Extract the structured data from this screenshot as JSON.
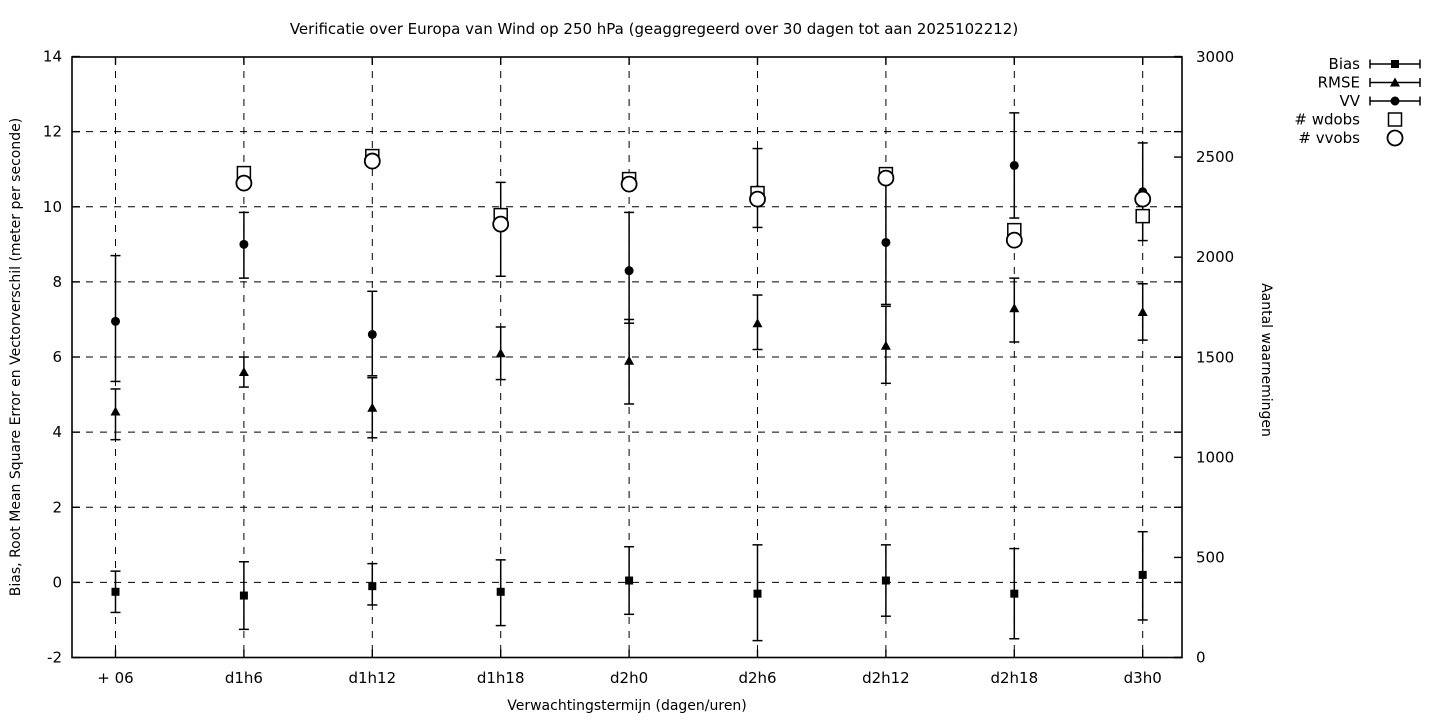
{
  "chart_data": {
    "type": "scatter",
    "title": "Verificatie over Europa van Wind op 250 hPa (geaggregeerd over 30 dagen tot aan 2025102212)",
    "xlabel": "Verwachtingstermijn (dagen/uren)",
    "ylabel_left": "Bias, Root Mean Square Error en Vectorverschil (meter per seconde)",
    "ylabel_right": "Aantal waarnemingen",
    "categories": [
      "+ 06",
      "d1h6",
      "d1h12",
      "d1h18",
      "d2h0",
      "d2h6",
      "d2h12",
      "d2h18",
      "d3h0"
    ],
    "left_axis": {
      "min": -2,
      "max": 14,
      "ticks": [
        14,
        12,
        10,
        8,
        6,
        4,
        2,
        0,
        -2
      ]
    },
    "right_axis": {
      "min": 0,
      "max": 3000,
      "ticks": [
        3000,
        2500,
        2000,
        1500,
        1000,
        500,
        0
      ]
    },
    "grid": true,
    "legend_position": "top-right-outside",
    "colors": {
      "foreground": "#000000",
      "background": "#ffffff"
    },
    "series": [
      {
        "name": "Bias",
        "axis": "left",
        "marker": "filled-square",
        "errorbars": true,
        "values": [
          -0.25,
          -0.35,
          -0.1,
          -0.25,
          0.05,
          -0.3,
          0.05,
          -0.3,
          0.2
        ],
        "err_low": [
          -0.8,
          -1.25,
          -0.6,
          -1.15,
          -0.85,
          -1.55,
          -0.9,
          -1.5,
          -1.0
        ],
        "err_high": [
          0.3,
          0.55,
          0.5,
          0.6,
          0.95,
          1.0,
          1.0,
          0.9,
          1.35
        ]
      },
      {
        "name": "RMSE",
        "axis": "left",
        "marker": "filled-triangle",
        "errorbars": true,
        "values": [
          4.55,
          5.6,
          4.65,
          6.1,
          5.9,
          6.9,
          6.3,
          7.3,
          7.2
        ],
        "err_low": [
          3.8,
          5.2,
          3.85,
          5.4,
          4.75,
          6.2,
          5.3,
          6.4,
          6.45
        ],
        "err_high": [
          5.15,
          6.0,
          5.45,
          6.8,
          7.0,
          7.65,
          7.35,
          8.1,
          7.95
        ]
      },
      {
        "name": "VV",
        "axis": "left",
        "marker": "filled-circle",
        "errorbars": true,
        "values": [
          6.95,
          9.0,
          6.6,
          9.45,
          8.3,
          10.45,
          9.05,
          11.1,
          10.4
        ],
        "err_low": [
          5.35,
          8.1,
          5.5,
          8.15,
          6.9,
          9.45,
          7.4,
          9.7,
          9.1
        ],
        "err_high": [
          8.7,
          9.85,
          7.75,
          10.65,
          9.85,
          11.55,
          10.75,
          12.5,
          11.7
        ]
      },
      {
        "name": "# wdobs",
        "axis": "right",
        "marker": "open-square",
        "errorbars": false,
        "values": [
          null,
          2420,
          2505,
          2210,
          2390,
          2320,
          2415,
          2135,
          2205
        ]
      },
      {
        "name": "# vvobs",
        "axis": "right",
        "marker": "open-circle",
        "errorbars": false,
        "values": [
          null,
          2370,
          2480,
          2165,
          2365,
          2290,
          2395,
          2085,
          2290
        ]
      }
    ]
  }
}
